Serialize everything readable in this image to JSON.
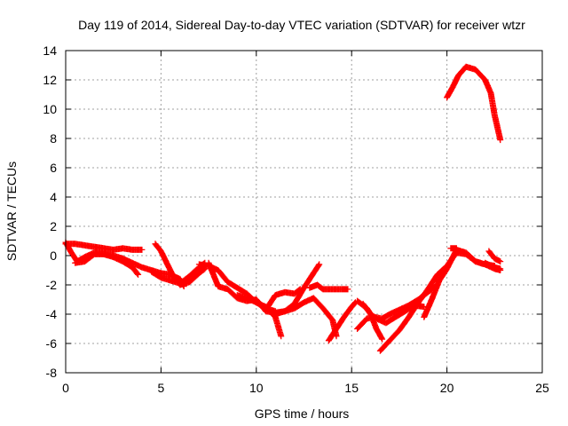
{
  "chart_data": {
    "type": "scatter",
    "title": "Day 119 of 2014, Sidereal Day-to-day VTEC variation (SDTVAR) for receiver wtzr",
    "xlabel": "GPS time / hours",
    "ylabel": "SDTVAR / TECUs",
    "xlim": [
      0,
      25
    ],
    "ylim": [
      -8,
      14
    ],
    "xticks": [
      0,
      5,
      10,
      15,
      20,
      25
    ],
    "yticks": [
      -8,
      -6,
      -4,
      -2,
      0,
      2,
      4,
      6,
      8,
      10,
      12,
      14
    ],
    "grid": true,
    "marker": "plus",
    "series": [
      {
        "name": "SDTVAR",
        "color": "#ff0000",
        "tracks": [
          [
            [
              0.0,
              0.8
            ],
            [
              0.5,
              0.8
            ],
            [
              1.0,
              0.7
            ],
            [
              1.5,
              0.6
            ],
            [
              2.0,
              0.5
            ],
            [
              2.5,
              0.4
            ],
            [
              3.0,
              0.5
            ],
            [
              3.5,
              0.4
            ],
            [
              4.0,
              0.4
            ]
          ],
          [
            [
              0.0,
              0.9
            ],
            [
              0.3,
              0.2
            ],
            [
              0.6,
              -0.4
            ],
            [
              1.0,
              -0.1
            ],
            [
              1.5,
              0.2
            ],
            [
              2.0,
              0.1
            ],
            [
              2.5,
              -0.1
            ],
            [
              3.0,
              -0.4
            ],
            [
              3.5,
              -0.8
            ],
            [
              3.8,
              -1.3
            ]
          ],
          [
            [
              0.5,
              -0.5
            ],
            [
              1.0,
              -0.4
            ],
            [
              1.5,
              0.1
            ],
            [
              2.0,
              0.1
            ],
            [
              2.5,
              0.0
            ],
            [
              3.0,
              -0.2
            ],
            [
              3.5,
              -0.5
            ],
            [
              4.0,
              -0.8
            ],
            [
              4.5,
              -1.0
            ],
            [
              5.0,
              -1.2
            ],
            [
              5.5,
              -1.3
            ],
            [
              6.0,
              -1.6
            ],
            [
              6.2,
              -2.1
            ]
          ],
          [
            [
              4.5,
              -1.1
            ],
            [
              5.0,
              -1.5
            ],
            [
              5.5,
              -1.7
            ],
            [
              6.0,
              -1.9
            ],
            [
              6.5,
              -1.4
            ],
            [
              7.0,
              -0.8
            ],
            [
              7.3,
              -0.5
            ]
          ],
          [
            [
              4.7,
              0.8
            ],
            [
              5.0,
              0.3
            ],
            [
              5.3,
              -0.5
            ],
            [
              5.6,
              -1.3
            ],
            [
              6.0,
              -2.0
            ],
            [
              6.5,
              -1.8
            ],
            [
              7.0,
              -1.2
            ],
            [
              7.3,
              -0.9
            ]
          ],
          [
            [
              7.0,
              -0.6
            ],
            [
              7.5,
              -0.7
            ],
            [
              8.0,
              -1.0
            ],
            [
              8.5,
              -1.8
            ],
            [
              9.0,
              -2.2
            ],
            [
              9.5,
              -2.6
            ],
            [
              10.0,
              -3.2
            ],
            [
              10.5,
              -3.6
            ],
            [
              11.0,
              -3.8
            ]
          ],
          [
            [
              7.5,
              -0.5
            ],
            [
              8.0,
              -2.1
            ],
            [
              8.5,
              -2.3
            ],
            [
              9.0,
              -2.9
            ],
            [
              9.5,
              -3.1
            ],
            [
              10.0,
              -3.0
            ],
            [
              10.5,
              -3.8
            ],
            [
              11.0,
              -3.9
            ],
            [
              11.5,
              -3.8
            ]
          ],
          [
            [
              9.0,
              -2.7
            ],
            [
              9.5,
              -2.9
            ],
            [
              10.0,
              -3.2
            ],
            [
              10.5,
              -3.5
            ],
            [
              11.0,
              -4.2
            ],
            [
              11.3,
              -5.5
            ]
          ],
          [
            [
              10.5,
              -3.7
            ],
            [
              11.0,
              -2.7
            ],
            [
              11.5,
              -2.5
            ],
            [
              12.0,
              -2.6
            ],
            [
              12.3,
              -2.3
            ]
          ],
          [
            [
              11.0,
              -4.0
            ],
            [
              11.5,
              -3.8
            ],
            [
              12.0,
              -3.6
            ],
            [
              12.5,
              -3.2
            ],
            [
              13.0,
              -2.9
            ],
            [
              13.5,
              -3.6
            ],
            [
              14.0,
              -4.4
            ],
            [
              14.2,
              -5.5
            ]
          ],
          [
            [
              11.5,
              -3.8
            ],
            [
              12.0,
              -3.3
            ],
            [
              12.5,
              -2.2
            ],
            [
              13.0,
              -1.2
            ],
            [
              13.3,
              -0.6
            ]
          ],
          [
            [
              12.8,
              -2.2
            ],
            [
              13.2,
              -2.0
            ],
            [
              13.5,
              -2.3
            ],
            [
              14.0,
              -2.3
            ],
            [
              14.5,
              -2.3
            ],
            [
              14.8,
              -2.3
            ]
          ],
          [
            [
              13.8,
              -5.8
            ],
            [
              14.2,
              -5.0
            ],
            [
              14.6,
              -4.2
            ],
            [
              15.0,
              -3.5
            ],
            [
              15.2,
              -3.2
            ]
          ],
          [
            [
              15.3,
              -3.1
            ],
            [
              15.8,
              -3.6
            ],
            [
              16.0,
              -4.0
            ],
            [
              16.3,
              -4.3
            ],
            [
              16.8,
              -4.6
            ],
            [
              17.3,
              -4.2
            ],
            [
              17.8,
              -3.8
            ],
            [
              18.3,
              -3.4
            ],
            [
              18.8,
              -3.5
            ]
          ],
          [
            [
              15.6,
              -3.3
            ],
            [
              16.0,
              -4.0
            ],
            [
              16.3,
              -5.0
            ],
            [
              16.6,
              -5.7
            ]
          ],
          [
            [
              15.3,
              -5.0
            ],
            [
              15.8,
              -4.3
            ],
            [
              16.2,
              -4.2
            ],
            [
              16.6,
              -4.3
            ],
            [
              17.0,
              -4.0
            ],
            [
              17.5,
              -3.7
            ],
            [
              18.0,
              -3.4
            ],
            [
              18.5,
              -3.0
            ],
            [
              19.0,
              -2.5
            ],
            [
              19.5,
              -2.0
            ]
          ],
          [
            [
              16.5,
              -6.5
            ],
            [
              17.0,
              -5.8
            ],
            [
              17.5,
              -5.1
            ],
            [
              18.0,
              -4.2
            ],
            [
              18.5,
              -3.2
            ],
            [
              19.0,
              -2.3
            ],
            [
              19.5,
              -1.3
            ],
            [
              20.0,
              -0.7
            ],
            [
              20.5,
              0.2
            ],
            [
              21.0,
              0.1
            ],
            [
              21.5,
              -0.4
            ],
            [
              22.0,
              -0.6
            ],
            [
              22.5,
              -0.9
            ],
            [
              22.8,
              -1.0
            ]
          ],
          [
            [
              18.8,
              -4.2
            ],
            [
              19.2,
              -3.0
            ],
            [
              19.6,
              -1.7
            ],
            [
              20.0,
              -0.9
            ],
            [
              20.5,
              0.4
            ],
            [
              21.0,
              0.2
            ],
            [
              21.5,
              -0.4
            ],
            [
              22.0,
              -0.6
            ],
            [
              22.5,
              -0.7
            ]
          ],
          [
            [
              22.0,
              -0.5
            ],
            [
              22.5,
              -0.8
            ],
            [
              22.8,
              -0.9
            ]
          ],
          [
            [
              20.2,
              0.5
            ],
            [
              20.5,
              0.5
            ]
          ],
          [
            [
              22.2,
              0.3
            ],
            [
              22.5,
              -0.2
            ],
            [
              22.8,
              -0.4
            ]
          ],
          [
            [
              20.0,
              10.8
            ],
            [
              20.3,
              11.5
            ],
            [
              20.6,
              12.3
            ],
            [
              21.0,
              12.9
            ],
            [
              21.5,
              12.7
            ],
            [
              22.0,
              12.0
            ],
            [
              22.3,
              11.1
            ],
            [
              22.5,
              9.6
            ],
            [
              22.8,
              7.9
            ]
          ]
        ]
      }
    ]
  }
}
